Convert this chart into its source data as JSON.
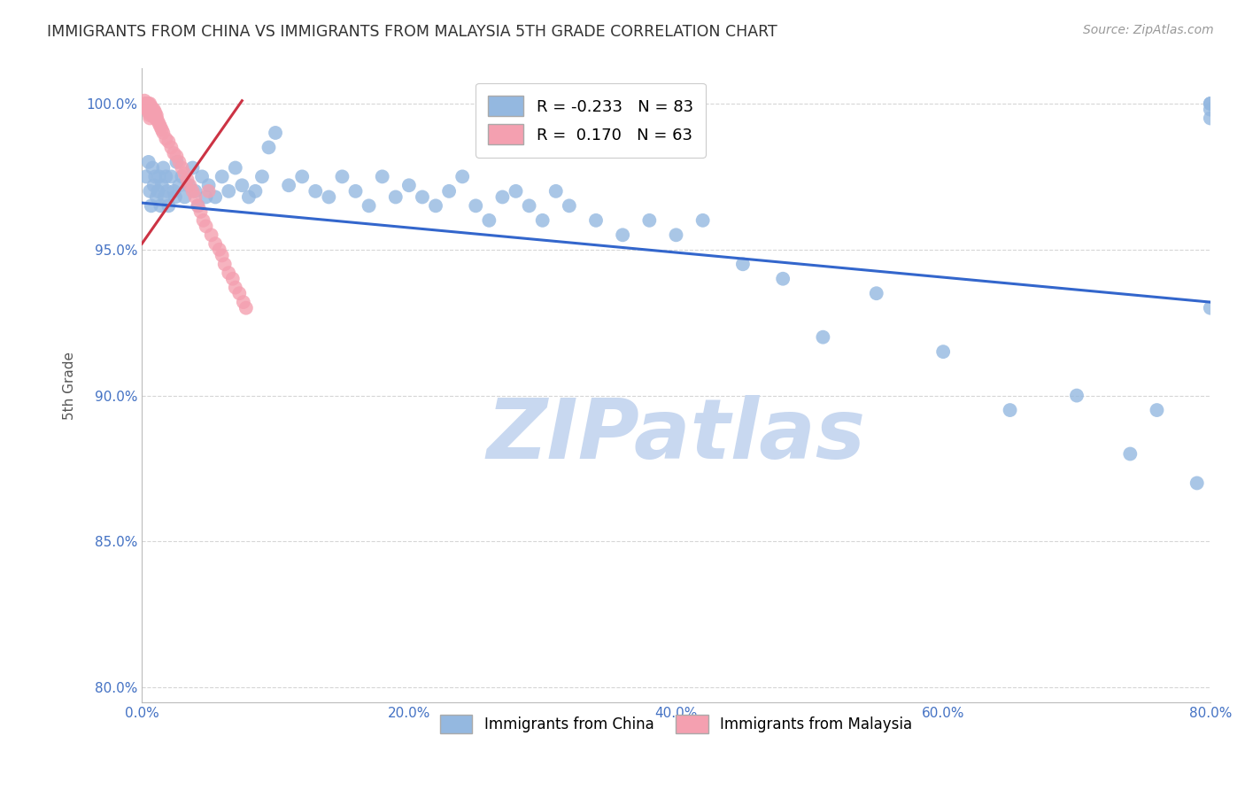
{
  "title": "IMMIGRANTS FROM CHINA VS IMMIGRANTS FROM MALAYSIA 5TH GRADE CORRELATION CHART",
  "source": "Source: ZipAtlas.com",
  "ylabel": "5th Grade",
  "xlabel_ticks": [
    "0.0%",
    "20.0%",
    "40.0%",
    "60.0%",
    "80.0%"
  ],
  "ylabel_ticks": [
    "80.0%",
    "85.0%",
    "90.0%",
    "95.0%",
    "100.0%"
  ],
  "xlim": [
    0.0,
    0.8
  ],
  "ylim": [
    0.795,
    1.012
  ],
  "ytick_vals": [
    0.8,
    0.85,
    0.9,
    0.95,
    1.0
  ],
  "xtick_vals": [
    0.0,
    0.2,
    0.4,
    0.6,
    0.8
  ],
  "china_color": "#94b8e0",
  "malaysia_color": "#f4a0b0",
  "china_R": -0.233,
  "china_N": 83,
  "malaysia_R": 0.17,
  "malaysia_N": 63,
  "china_trendline": [
    [
      0.0,
      0.966
    ],
    [
      0.8,
      0.932
    ]
  ],
  "malaysia_trendline": [
    [
      0.0,
      0.952
    ],
    [
      0.075,
      1.001
    ]
  ],
  "china_scatter_x": [
    0.003,
    0.005,
    0.006,
    0.007,
    0.008,
    0.009,
    0.01,
    0.011,
    0.012,
    0.013,
    0.014,
    0.015,
    0.016,
    0.017,
    0.018,
    0.019,
    0.02,
    0.022,
    0.024,
    0.025,
    0.026,
    0.028,
    0.03,
    0.032,
    0.035,
    0.038,
    0.04,
    0.042,
    0.045,
    0.048,
    0.05,
    0.055,
    0.06,
    0.065,
    0.07,
    0.075,
    0.08,
    0.085,
    0.09,
    0.095,
    0.1,
    0.11,
    0.12,
    0.13,
    0.14,
    0.15,
    0.16,
    0.17,
    0.18,
    0.19,
    0.2,
    0.21,
    0.22,
    0.23,
    0.24,
    0.25,
    0.26,
    0.27,
    0.28,
    0.29,
    0.3,
    0.31,
    0.32,
    0.34,
    0.36,
    0.38,
    0.4,
    0.42,
    0.45,
    0.48,
    0.51,
    0.55,
    0.6,
    0.65,
    0.7,
    0.74,
    0.76,
    0.79,
    0.8,
    0.8,
    0.8,
    0.8,
    0.8
  ],
  "china_scatter_y": [
    0.975,
    0.98,
    0.97,
    0.965,
    0.978,
    0.972,
    0.975,
    0.968,
    0.97,
    0.975,
    0.965,
    0.972,
    0.978,
    0.968,
    0.975,
    0.97,
    0.965,
    0.975,
    0.97,
    0.968,
    0.98,
    0.972,
    0.975,
    0.968,
    0.972,
    0.978,
    0.97,
    0.965,
    0.975,
    0.968,
    0.972,
    0.968,
    0.975,
    0.97,
    0.978,
    0.972,
    0.968,
    0.97,
    0.975,
    0.985,
    0.99,
    0.972,
    0.975,
    0.97,
    0.968,
    0.975,
    0.97,
    0.965,
    0.975,
    0.968,
    0.972,
    0.968,
    0.965,
    0.97,
    0.975,
    0.965,
    0.96,
    0.968,
    0.97,
    0.965,
    0.96,
    0.97,
    0.965,
    0.96,
    0.955,
    0.96,
    0.955,
    0.96,
    0.945,
    0.94,
    0.92,
    0.935,
    0.915,
    0.895,
    0.9,
    0.88,
    0.895,
    0.87,
    1.0,
    1.0,
    0.998,
    0.995,
    0.93
  ],
  "malaysia_scatter_x": [
    0.002,
    0.003,
    0.003,
    0.003,
    0.004,
    0.004,
    0.004,
    0.005,
    0.005,
    0.005,
    0.005,
    0.006,
    0.006,
    0.006,
    0.006,
    0.006,
    0.006,
    0.007,
    0.007,
    0.007,
    0.008,
    0.008,
    0.008,
    0.009,
    0.009,
    0.01,
    0.01,
    0.01,
    0.011,
    0.011,
    0.012,
    0.013,
    0.014,
    0.015,
    0.016,
    0.018,
    0.02,
    0.022,
    0.024,
    0.026,
    0.028,
    0.03,
    0.032,
    0.034,
    0.036,
    0.038,
    0.04,
    0.042,
    0.044,
    0.046,
    0.048,
    0.05,
    0.052,
    0.055,
    0.058,
    0.06,
    0.062,
    0.065,
    0.068,
    0.07,
    0.073,
    0.076,
    0.078
  ],
  "malaysia_scatter_y": [
    1.001,
    1.0,
    1.0,
    0.999,
    1.0,
    0.999,
    0.998,
    1.0,
    0.999,
    0.998,
    0.997,
    1.0,
    0.999,
    0.998,
    0.997,
    0.996,
    0.995,
    0.999,
    0.998,
    0.997,
    0.998,
    0.997,
    0.996,
    0.998,
    0.997,
    0.997,
    0.996,
    0.995,
    0.996,
    0.995,
    0.994,
    0.993,
    0.992,
    0.991,
    0.99,
    0.988,
    0.987,
    0.985,
    0.983,
    0.982,
    0.98,
    0.978,
    0.976,
    0.974,
    0.972,
    0.97,
    0.968,
    0.965,
    0.963,
    0.96,
    0.958,
    0.97,
    0.955,
    0.952,
    0.95,
    0.948,
    0.945,
    0.942,
    0.94,
    0.937,
    0.935,
    0.932,
    0.93
  ],
  "trendline_china_color": "#3366cc",
  "trendline_malaysia_color": "#cc3344",
  "watermark": "ZIPatlas",
  "watermark_color": "#c8d8f0",
  "background_color": "#ffffff",
  "grid_color": "#cccccc"
}
